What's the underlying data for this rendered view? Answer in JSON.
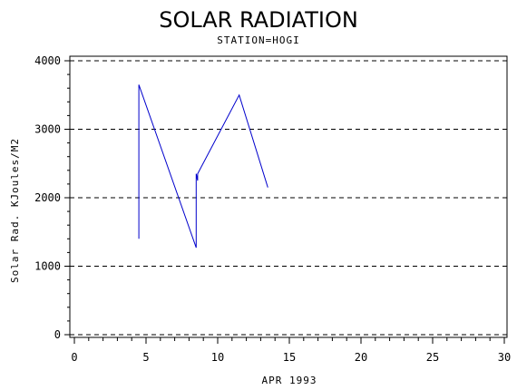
{
  "chart_data": {
    "type": "line",
    "title": "SOLAR RADIATION",
    "subtitle": "STATION=HOGI",
    "xlabel": "APR 1993",
    "ylabel": "Solar Rad. KJoules/M2",
    "xlim": [
      0,
      30
    ],
    "ylim": [
      0,
      4000
    ],
    "x_ticks": [
      0,
      5,
      10,
      15,
      20,
      25,
      30
    ],
    "y_ticks": [
      0,
      1000,
      2000,
      3000,
      4000
    ],
    "grid": "horizontal-dashed",
    "line_color": "#0000cc",
    "series": [
      {
        "x": [
          4.5,
          4.5,
          8.5,
          8.5,
          8.6,
          8.6,
          11.5,
          13.5
        ],
        "y": [
          1400,
          3650,
          1270,
          2350,
          2250,
          2350,
          3500,
          2150
        ]
      }
    ]
  }
}
